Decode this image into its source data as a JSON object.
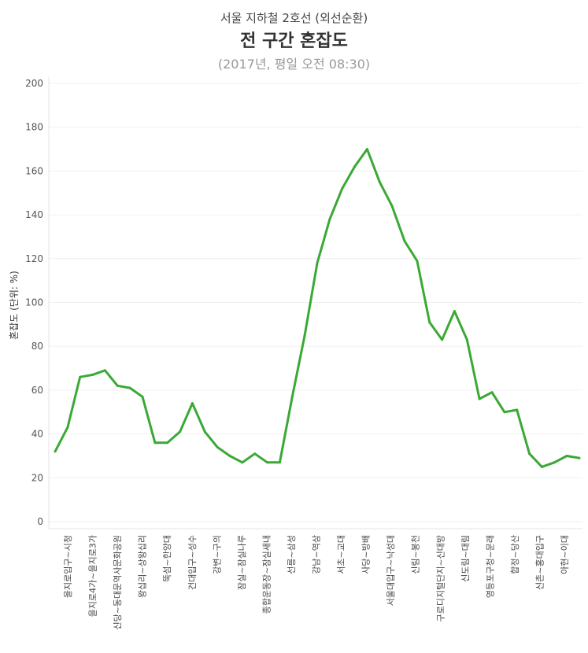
{
  "header": {
    "suptitle": "서울 지하철 2호선 (외선순환)",
    "title": "전 구간 혼잡도",
    "subtitle": "(2017년, 평일 오전 08:30)"
  },
  "chart_data": {
    "type": "line",
    "ylabel": "혼잡도 (단위: %)",
    "ylim": [
      0,
      200
    ],
    "yticks": [
      0,
      20,
      40,
      60,
      80,
      100,
      120,
      140,
      160,
      180,
      200
    ],
    "grid": true,
    "line_color": "#3aa935",
    "x_labels": [
      "을지로입구~시청",
      "을지로4가~을지로3가",
      "신당~동대문역사문화공원",
      "왕십리~상왕십리",
      "뚝섬~한양대",
      "건대입구~성수",
      "강변~구의",
      "잠실~잠실나루",
      "종합운동장~잠실새내",
      "선릉~삼성",
      "강남~역삼",
      "서초~교대",
      "사당~방배",
      "서울대입구~낙성대",
      "신림~봉천",
      "구로디지털단지~신대방",
      "신도림~대림",
      "영등포구청~문래",
      "합정~당산",
      "신촌~홍대입구",
      "아현~이대"
    ],
    "series": [
      {
        "values": [
          32,
          43,
          66,
          67,
          69,
          62,
          61,
          57,
          36,
          36,
          41,
          54,
          41,
          34,
          30,
          27,
          31,
          27,
          27,
          57,
          85,
          118,
          138,
          152,
          162,
          170,
          155,
          144,
          128,
          119,
          91,
          83,
          96,
          83,
          56,
          59,
          50,
          51,
          31,
          25,
          27,
          30,
          29
        ]
      }
    ]
  }
}
